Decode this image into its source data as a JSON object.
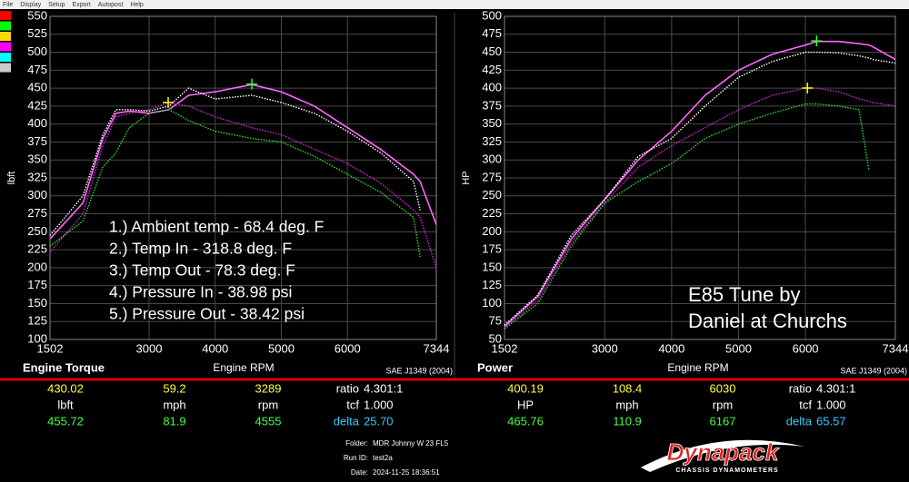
{
  "menu": [
    "File",
    "Display",
    "Setup",
    "Export",
    "Autopost",
    "Help"
  ],
  "legend_colors": [
    "#ff0000",
    "#00ff00",
    "#ffd700",
    "#ff00ff",
    "#00ffff",
    "#cccccc"
  ],
  "chart_data": [
    {
      "type": "line",
      "title": "Engine Torque",
      "xlabel": "Engine RPM",
      "ylabel": "lbft",
      "standard": "SAE J1349 (2004)",
      "x": [
        1502,
        2000,
        2300,
        2500,
        2700,
        3000,
        3300,
        3600,
        4000,
        4555,
        5000,
        5500,
        6000,
        6500,
        7000,
        7100,
        7344
      ],
      "series": [
        {
          "color": "#ff66ff",
          "style": "solid",
          "values": [
            240,
            290,
            380,
            415,
            418,
            415,
            420,
            440,
            445,
            455,
            445,
            425,
            395,
            365,
            330,
            320,
            260
          ]
        },
        {
          "color": "#ffffff",
          "style": "dotted",
          "values": [
            245,
            300,
            385,
            420,
            420,
            418,
            425,
            450,
            435,
            440,
            430,
            415,
            390,
            360,
            320,
            280,
            null
          ]
        },
        {
          "color": "#dd22dd",
          "style": "dotted",
          "values": [
            222,
            275,
            370,
            410,
            415,
            420,
            430,
            425,
            410,
            395,
            385,
            365,
            345,
            318,
            280,
            270,
            200
          ]
        },
        {
          "color": "#33dd33",
          "style": "dotted",
          "values": [
            230,
            265,
            340,
            360,
            395,
            415,
            420,
            405,
            390,
            380,
            375,
            355,
            330,
            305,
            270,
            215,
            null
          ]
        }
      ],
      "markers": [
        {
          "color": "#ffff00",
          "x": 3289,
          "y": 430.02
        },
        {
          "color": "#33ff33",
          "x": 4555,
          "y": 455.72
        }
      ],
      "annotations": [
        "1.) Ambient temp - 68.4 deg. F",
        "2.) Temp In - 318.8 deg. F",
        "3.) Temp Out - 78.3 deg. F",
        "4.) Pressure In - 38.98 psi",
        "5.) Pressure Out - 38.42 psi"
      ],
      "xlim": [
        1502,
        7344
      ],
      "xticks": [
        1502,
        3000,
        4000,
        5000,
        6000,
        7344
      ],
      "ylim": [
        100,
        550
      ],
      "yticks": [
        100,
        125,
        150,
        175,
        200,
        225,
        250,
        275,
        300,
        325,
        350,
        375,
        400,
        425,
        450,
        475,
        500,
        525,
        550
      ],
      "grid": true
    },
    {
      "type": "line",
      "title": "Power",
      "xlabel": "Engine RPM",
      "ylabel": "HP",
      "standard": "SAE J1349 (2004)",
      "x": [
        1502,
        2000,
        2500,
        3000,
        3500,
        4000,
        4500,
        5000,
        5500,
        6000,
        6167,
        6500,
        6800,
        6950,
        7000,
        7344
      ],
      "series": [
        {
          "color": "#ff66ff",
          "style": "solid",
          "values": [
            68,
            110,
            190,
            245,
            300,
            340,
            390,
            425,
            447,
            460,
            465,
            465,
            462,
            460,
            458,
            440
          ]
        },
        {
          "color": "#ffffff",
          "style": "dotted",
          "values": [
            70,
            112,
            195,
            245,
            305,
            330,
            375,
            415,
            437,
            450,
            450,
            449,
            445,
            442,
            440,
            435
          ]
        },
        {
          "color": "#dd22dd",
          "style": "dotted",
          "values": [
            65,
            105,
            185,
            240,
            290,
            320,
            345,
            370,
            390,
            400,
            400,
            395,
            385,
            382,
            380,
            375
          ]
        },
        {
          "color": "#33dd33",
          "style": "dotted",
          "values": [
            65,
            100,
            180,
            240,
            270,
            295,
            330,
            350,
            365,
            378,
            378,
            375,
            370,
            285,
            null,
            null
          ]
        }
      ],
      "markers": [
        {
          "color": "#ffff00",
          "x": 6030,
          "y": 400.19
        },
        {
          "color": "#33ff33",
          "x": 6167,
          "y": 465.76
        }
      ],
      "annotations": [
        "E85 Tune by",
        "Daniel at Churchs"
      ],
      "xlim": [
        1502,
        7344
      ],
      "xticks": [
        1502,
        3000,
        4000,
        5000,
        6000,
        7344
      ],
      "ylim": [
        50,
        500
      ],
      "yticks": [
        50,
        75,
        100,
        125,
        150,
        175,
        200,
        225,
        250,
        275,
        300,
        325,
        350,
        375,
        400,
        425,
        450,
        475,
        500
      ],
      "grid": true
    }
  ],
  "readouts": [
    [
      {
        "values": [
          "430.02",
          "59.2",
          "3289"
        ],
        "label": "ratio",
        "value": "4.301:1"
      },
      {
        "values": [
          "lbft",
          "mph",
          "rpm"
        ],
        "label": "tcf",
        "value": "1.000"
      },
      {
        "values": [
          "455.72",
          "81.9",
          "4555"
        ],
        "label": "delta",
        "value": "25.70"
      }
    ],
    [
      {
        "values": [
          "400.19",
          "108.4",
          "6030"
        ],
        "label": "ratio",
        "value": "4.301:1"
      },
      {
        "values": [
          "HP",
          "mph",
          "rpm"
        ],
        "label": "tcf",
        "value": "1.000"
      },
      {
        "values": [
          "465.76",
          "110.9",
          "6167"
        ],
        "label": "delta",
        "value": "65.57"
      }
    ]
  ],
  "run_info": [
    {
      "label": "Folder:",
      "value": "MDR Johnny W 23 FL5"
    },
    {
      "label": "Run ID:",
      "value": "test2a"
    },
    {
      "label": "Date:",
      "value": "2024-11-25 18:36:51"
    }
  ],
  "logo": {
    "name": "Dynapack",
    "tagline": "CHASSIS DYNAMOMETERS"
  }
}
